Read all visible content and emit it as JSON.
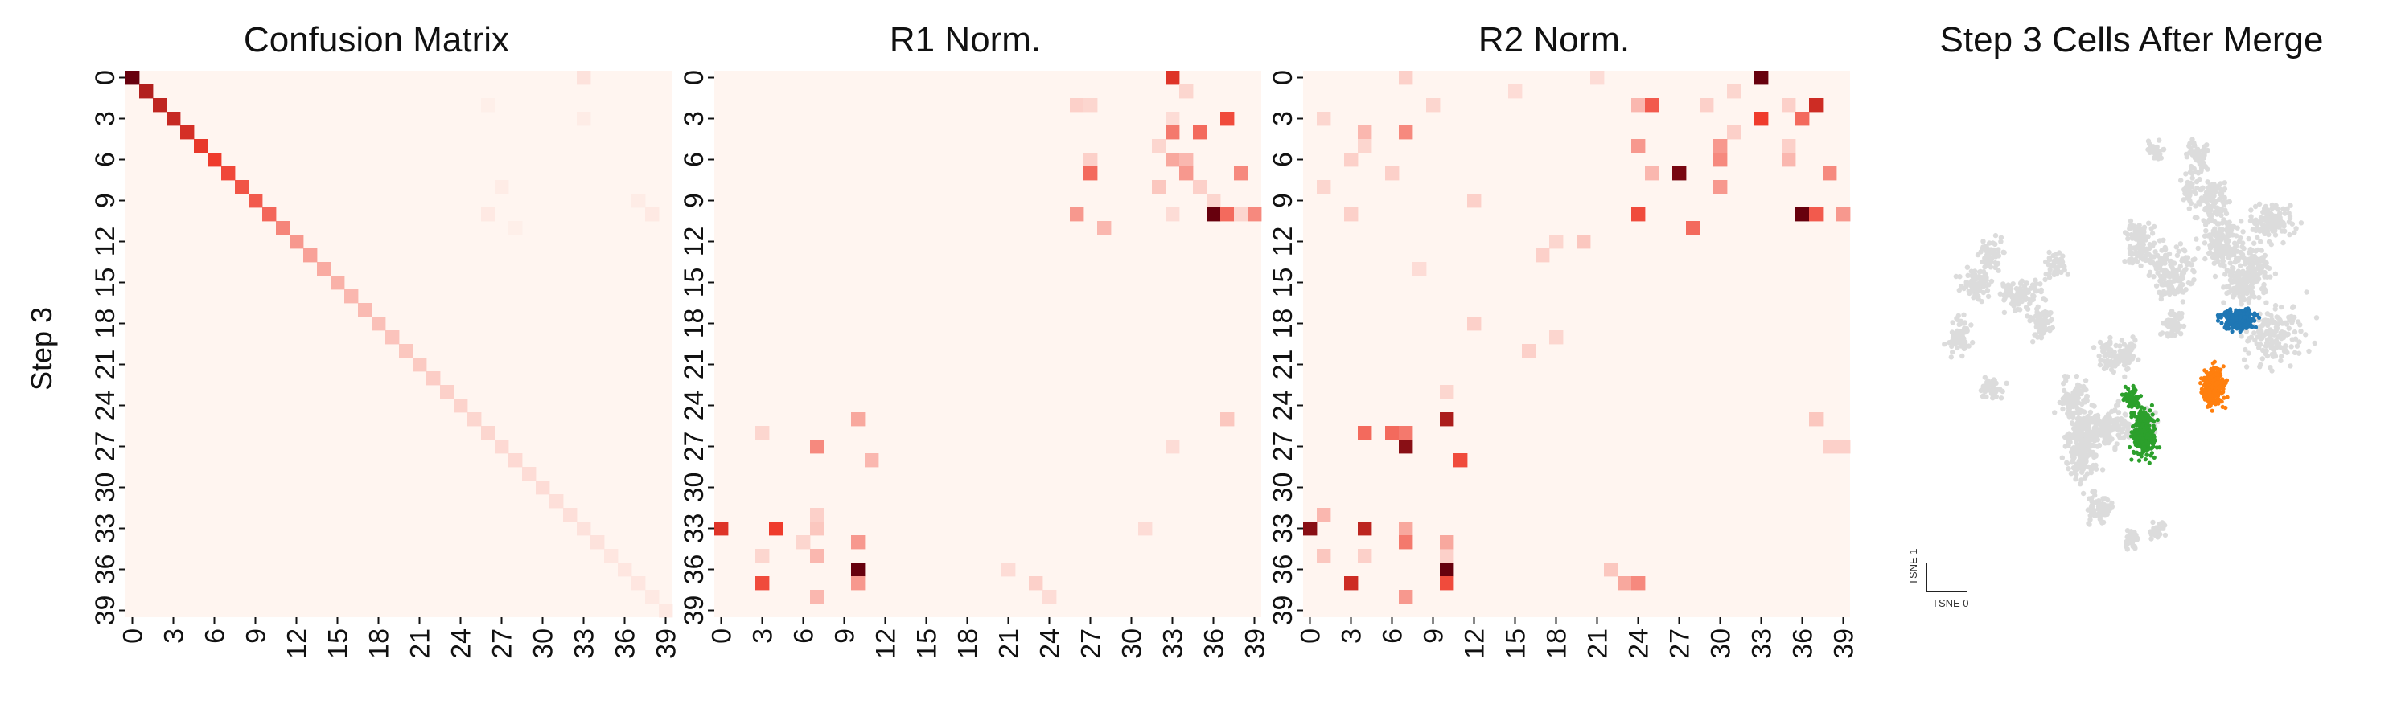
{
  "figure": {
    "ylabel": "Step 3"
  },
  "colors": {
    "heatmap_low": "#fff5f0",
    "heatmap_high": "#67000d",
    "scatter_gray": "#dcdcdc",
    "cluster_blue": "#1f77b4",
    "cluster_orange": "#ff7f0e",
    "cluster_green": "#2ca02c"
  },
  "chart_data": [
    {
      "type": "heatmap",
      "title": "Confusion Matrix",
      "ylabel": "Step 3",
      "xlabel": "",
      "size": 40,
      "tick_labels": [
        "0",
        "3",
        "6",
        "9",
        "12",
        "15",
        "18",
        "21",
        "24",
        "27",
        "30",
        "33",
        "36",
        "39"
      ],
      "tick_values": [
        0,
        3,
        6,
        9,
        12,
        15,
        18,
        21,
        24,
        27,
        30,
        33,
        36,
        39
      ],
      "vmin": 0,
      "vmax": 1,
      "diagonal": [
        1.0,
        0.78,
        0.74,
        0.72,
        0.68,
        0.62,
        0.6,
        0.56,
        0.52,
        0.5,
        0.46,
        0.36,
        0.3,
        0.27,
        0.24,
        0.22,
        0.2,
        0.19,
        0.17,
        0.16,
        0.15,
        0.14,
        0.13,
        0.12,
        0.11,
        0.1,
        0.1,
        0.09,
        0.09,
        0.08,
        0.08,
        0.07,
        0.07,
        0.06,
        0.06,
        0.05,
        0.05,
        0.05,
        0.04,
        0.04
      ],
      "cells": [
        [
          0,
          33,
          0.06
        ],
        [
          3,
          33,
          0.03
        ],
        [
          2,
          26,
          0.02
        ],
        [
          8,
          27,
          0.03
        ],
        [
          10,
          26,
          0.04
        ],
        [
          10,
          38,
          0.04
        ],
        [
          9,
          37,
          0.03
        ],
        [
          11,
          28,
          0.02
        ]
      ]
    },
    {
      "type": "heatmap",
      "title": "R1 Norm.",
      "ylabel": "",
      "xlabel": "",
      "size": 40,
      "tick_labels": [
        "0",
        "3",
        "6",
        "9",
        "12",
        "15",
        "18",
        "21",
        "24",
        "27",
        "30",
        "33",
        "36",
        "39"
      ],
      "tick_values": [
        0,
        3,
        6,
        9,
        12,
        15,
        18,
        21,
        24,
        27,
        30,
        33,
        36,
        39
      ],
      "vmin": 0,
      "vmax": 1,
      "cells": [
        [
          0,
          33,
          0.65
        ],
        [
          1,
          34,
          0.1
        ],
        [
          2,
          26,
          0.12
        ],
        [
          2,
          27,
          0.1
        ],
        [
          3,
          37,
          0.55
        ],
        [
          3,
          33,
          0.08
        ],
        [
          4,
          35,
          0.45
        ],
        [
          4,
          33,
          0.4
        ],
        [
          5,
          32,
          0.1
        ],
        [
          6,
          33,
          0.25
        ],
        [
          6,
          34,
          0.2
        ],
        [
          6,
          27,
          0.12
        ],
        [
          7,
          27,
          0.45
        ],
        [
          7,
          34,
          0.3
        ],
        [
          7,
          38,
          0.35
        ],
        [
          8,
          35,
          0.12
        ],
        [
          8,
          32,
          0.15
        ],
        [
          9,
          36,
          0.1
        ],
        [
          10,
          26,
          0.3
        ],
        [
          10,
          36,
          1.0
        ],
        [
          10,
          37,
          0.45
        ],
        [
          10,
          39,
          0.35
        ],
        [
          10,
          38,
          0.1
        ],
        [
          11,
          28,
          0.2
        ],
        [
          10,
          33,
          0.08
        ],
        [
          25,
          10,
          0.25
        ],
        [
          25,
          37,
          0.15
        ],
        [
          26,
          3,
          0.1
        ],
        [
          27,
          7,
          0.35
        ],
        [
          28,
          11,
          0.2
        ],
        [
          27,
          33,
          0.08
        ],
        [
          33,
          0,
          0.65
        ],
        [
          33,
          4,
          0.6
        ],
        [
          33,
          7,
          0.15
        ],
        [
          32,
          7,
          0.12
        ],
        [
          34,
          6,
          0.1
        ],
        [
          34,
          10,
          0.3
        ],
        [
          35,
          3,
          0.1
        ],
        [
          35,
          7,
          0.2
        ],
        [
          33,
          31,
          0.08
        ],
        [
          36,
          10,
          1.0
        ],
        [
          37,
          3,
          0.55
        ],
        [
          37,
          10,
          0.3
        ],
        [
          37,
          23,
          0.12
        ],
        [
          38,
          7,
          0.2
        ],
        [
          38,
          24,
          0.08
        ],
        [
          36,
          21,
          0.08
        ]
      ]
    },
    {
      "type": "heatmap",
      "title": "R2 Norm.",
      "ylabel": "",
      "xlabel": "",
      "size": 40,
      "tick_labels": [
        "0",
        "3",
        "6",
        "9",
        "12",
        "15",
        "18",
        "21",
        "24",
        "27",
        "30",
        "33",
        "36",
        "39"
      ],
      "tick_values": [
        0,
        3,
        6,
        9,
        12,
        15,
        18,
        21,
        24,
        27,
        30,
        33,
        36,
        39
      ],
      "vmin": 0,
      "vmax": 1,
      "cells": [
        [
          0,
          7,
          0.12
        ],
        [
          0,
          21,
          0.08
        ],
        [
          0,
          33,
          1.0
        ],
        [
          1,
          15,
          0.08
        ],
        [
          1,
          31,
          0.1
        ],
        [
          2,
          9,
          0.1
        ],
        [
          2,
          24,
          0.2
        ],
        [
          2,
          25,
          0.5
        ],
        [
          2,
          29,
          0.12
        ],
        [
          2,
          35,
          0.12
        ],
        [
          2,
          37,
          0.7
        ],
        [
          3,
          1,
          0.1
        ],
        [
          3,
          33,
          0.6
        ],
        [
          3,
          36,
          0.45
        ],
        [
          4,
          4,
          0.2
        ],
        [
          4,
          7,
          0.35
        ],
        [
          4,
          31,
          0.12
        ],
        [
          5,
          4,
          0.1
        ],
        [
          5,
          24,
          0.3
        ],
        [
          5,
          30,
          0.3
        ],
        [
          5,
          35,
          0.12
        ],
        [
          6,
          30,
          0.35
        ],
        [
          6,
          35,
          0.2
        ],
        [
          6,
          3,
          0.12
        ],
        [
          7,
          27,
          0.95
        ],
        [
          7,
          38,
          0.35
        ],
        [
          7,
          25,
          0.2
        ],
        [
          7,
          6,
          0.12
        ],
        [
          8,
          1,
          0.1
        ],
        [
          8,
          30,
          0.3
        ],
        [
          9,
          12,
          0.12
        ],
        [
          10,
          3,
          0.12
        ],
        [
          10,
          24,
          0.55
        ],
        [
          10,
          36,
          1.0
        ],
        [
          10,
          37,
          0.5
        ],
        [
          10,
          39,
          0.3
        ],
        [
          11,
          28,
          0.45
        ],
        [
          12,
          18,
          0.1
        ],
        [
          12,
          20,
          0.15
        ],
        [
          13,
          17,
          0.12
        ],
        [
          14,
          8,
          0.08
        ],
        [
          18,
          12,
          0.12
        ],
        [
          19,
          18,
          0.1
        ],
        [
          20,
          16,
          0.12
        ],
        [
          23,
          10,
          0.1
        ],
        [
          26,
          4,
          0.15
        ],
        [
          25,
          10,
          0.8
        ],
        [
          25,
          37,
          0.15
        ],
        [
          26,
          4,
          0.45
        ],
        [
          26,
          6,
          0.45
        ],
        [
          26,
          7,
          0.4
        ],
        [
          27,
          7,
          0.9
        ],
        [
          28,
          11,
          0.55
        ],
        [
          27,
          38,
          0.12
        ],
        [
          27,
          39,
          0.12
        ],
        [
          33,
          0,
          0.9
        ],
        [
          33,
          4,
          0.75
        ],
        [
          33,
          7,
          0.25
        ],
        [
          32,
          1,
          0.2
        ],
        [
          34,
          7,
          0.4
        ],
        [
          35,
          1,
          0.15
        ],
        [
          35,
          4,
          0.12
        ],
        [
          35,
          10,
          0.12
        ],
        [
          34,
          10,
          0.25
        ],
        [
          36,
          10,
          1.0
        ],
        [
          37,
          3,
          0.7
        ],
        [
          37,
          10,
          0.55
        ],
        [
          37,
          23,
          0.25
        ],
        [
          38,
          7,
          0.3
        ],
        [
          37,
          24,
          0.35
        ],
        [
          36,
          22,
          0.15
        ]
      ]
    },
    {
      "type": "scatter",
      "title": "Step 3 Cells After Merge",
      "xlabel": "TSNE 0",
      "ylabel": "TSNE 1",
      "series": [
        {
          "color": "#dcdcdc",
          "role": "background",
          "clusters": [
            [
              10,
              48,
              3,
              4,
              60
            ],
            [
              14,
              38,
              4,
              3,
              80
            ],
            [
              18,
              32,
              3,
              3,
              60
            ],
            [
              25,
              40,
              6,
              3,
              90
            ],
            [
              33,
              34,
              3,
              3,
              40
            ],
            [
              18,
              58,
              3,
              3,
              40
            ],
            [
              46,
              52,
              3,
              3,
              40
            ],
            [
              62,
              36,
              5,
              6,
              150
            ],
            [
              54,
              30,
              4,
              5,
              110
            ],
            [
              50,
              52,
              4,
              3,
              80
            ],
            [
              66,
              20,
              2,
              3,
              40
            ],
            [
              58,
              12,
              2,
              2,
              30
            ],
            [
              72,
              22,
              4,
              4,
              90
            ],
            [
              74,
              30,
              5,
              5,
              160
            ],
            [
              78,
              38,
              4,
              4,
              90
            ],
            [
              82,
              36,
              4,
              6,
              120
            ],
            [
              86,
              26,
              6,
              4,
              110
            ],
            [
              68,
              14,
              3,
              4,
              60
            ],
            [
              62,
              46,
              3,
              3,
              60
            ],
            [
              86,
              48,
              8,
              6,
              160
            ],
            [
              40,
              70,
              4,
              7,
              220
            ],
            [
              56,
              65,
              2,
              3,
              50
            ],
            [
              44,
              82,
              3,
              3,
              60
            ],
            [
              52,
              88,
              2,
              2,
              40
            ],
            [
              46,
              66,
              7,
              4,
              180
            ],
            [
              38,
              60,
              4,
              4,
              90
            ],
            [
              58,
              86,
              2,
              2,
              30
            ],
            [
              30,
              46,
              3,
              3,
              60
            ]
          ]
        },
        {
          "color": "#1f77b4",
          "clusters": [
            [
              78,
              45,
              4,
              2,
              260
            ]
          ]
        },
        {
          "color": "#ff7f0e",
          "clusters": [
            [
              72,
              58,
              3,
              4,
              260
            ]
          ]
        },
        {
          "color": "#2ca02c",
          "clusters": [
            [
              55,
              67,
              3,
              5,
              280
            ],
            [
              52,
              60,
              2,
              2,
              70
            ]
          ]
        }
      ],
      "xlim": [
        0,
        100
      ],
      "ylim": [
        0,
        100
      ],
      "grid": false,
      "legend": "none"
    }
  ]
}
